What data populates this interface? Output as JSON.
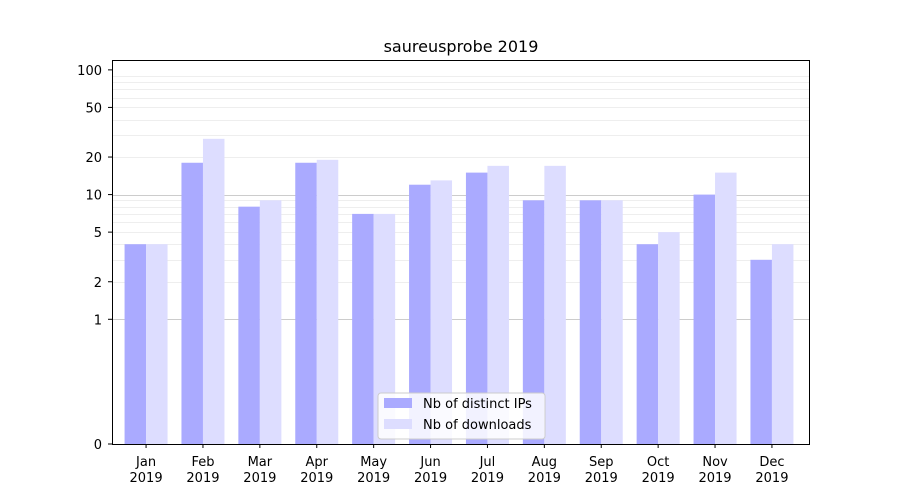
{
  "chart_data": {
    "type": "bar",
    "title": "saureusprobe 2019",
    "xlabel": "",
    "ylabel": "",
    "yscale": "symlog",
    "ylim": [
      0,
      120
    ],
    "grid": "y",
    "categories": [
      [
        "Jan",
        "2019"
      ],
      [
        "Feb",
        "2019"
      ],
      [
        "Mar",
        "2019"
      ],
      [
        "Apr",
        "2019"
      ],
      [
        "May",
        "2019"
      ],
      [
        "Jun",
        "2019"
      ],
      [
        "Jul",
        "2019"
      ],
      [
        "Aug",
        "2019"
      ],
      [
        "Sep",
        "2019"
      ],
      [
        "Oct",
        "2019"
      ],
      [
        "Nov",
        "2019"
      ],
      [
        "Dec",
        "2019"
      ]
    ],
    "yticks": [
      0,
      1,
      2,
      5,
      10,
      20,
      50,
      100
    ],
    "series": [
      {
        "name": "Nb of distinct IPs",
        "color": "#aaaaff",
        "values": [
          4,
          18,
          8,
          18,
          7,
          12,
          15,
          9,
          9,
          4,
          10,
          3
        ]
      },
      {
        "name": "Nb of downloads",
        "color": "#ddddff",
        "values": [
          4,
          28,
          9,
          19,
          7,
          13,
          17,
          17,
          9,
          5,
          15,
          4
        ]
      }
    ],
    "legend_position": "bottom-center"
  }
}
